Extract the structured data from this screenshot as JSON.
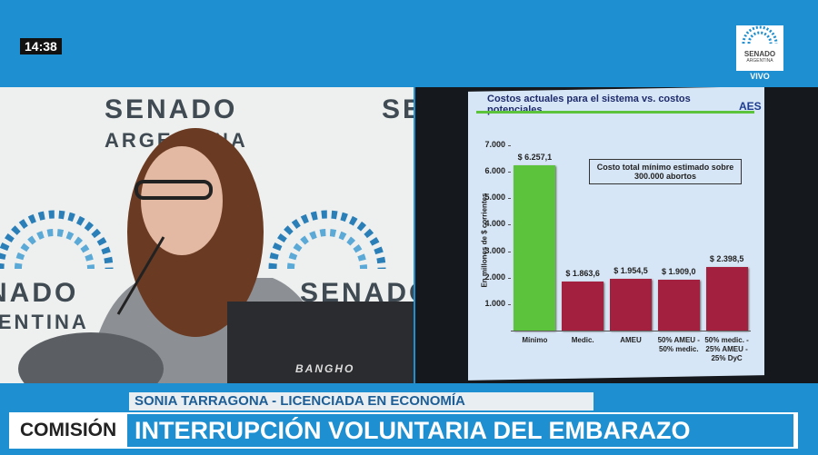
{
  "broadcast": {
    "time": "14:38",
    "logo_top": "SENADO",
    "logo_sub": "ARGENTINA",
    "live": "VIVO",
    "speaker": "SONIA TARRAGONA - LICENCIADA EN ECONOMÍA",
    "section": "COMISIÓN",
    "headline": "INTERRUPCIÓN VOLUNTARIA DEL EMBARAZO"
  },
  "backdrop": {
    "word1": "SENADO",
    "word2": "ARGENTINA",
    "laptop": "BANGHO"
  },
  "chart_data": {
    "type": "bar",
    "title": "Costos actuales para el sistema vs. costos potenciales",
    "logo": "AES",
    "ylabel": "En millones de $ corrientes",
    "annotation": "Costo total mínimo estimado sobre 300.000 abortos",
    "categories": [
      "Mínimo",
      "Medic.",
      "AMEU",
      "50% AMEU -\n50% medic.",
      "50% medic. -\n25% AMEU -\n25% DyC"
    ],
    "values": [
      6257.1,
      1863.6,
      1954.5,
      1909.0,
      2398.5
    ],
    "value_labels": [
      "$ 6.257,1",
      "$ 1.863,6",
      "$ 1.954,5",
      "$ 1.909,0",
      "$ 2.398,5"
    ],
    "colors": [
      "#5cc43c",
      "#a3203e",
      "#a3203e",
      "#a3203e",
      "#a3203e"
    ],
    "ylim": [
      0,
      7000
    ],
    "yticks": [
      {
        "value": 1000,
        "label": "1.000"
      },
      {
        "value": 2000,
        "label": "2.000"
      },
      {
        "value": 3000,
        "label": "3.000"
      },
      {
        "value": 4000,
        "label": "4.000"
      },
      {
        "value": 5000,
        "label": "5.000"
      },
      {
        "value": 6000,
        "label": "6.000"
      },
      {
        "value": 7000,
        "label": "7.000"
      }
    ]
  }
}
